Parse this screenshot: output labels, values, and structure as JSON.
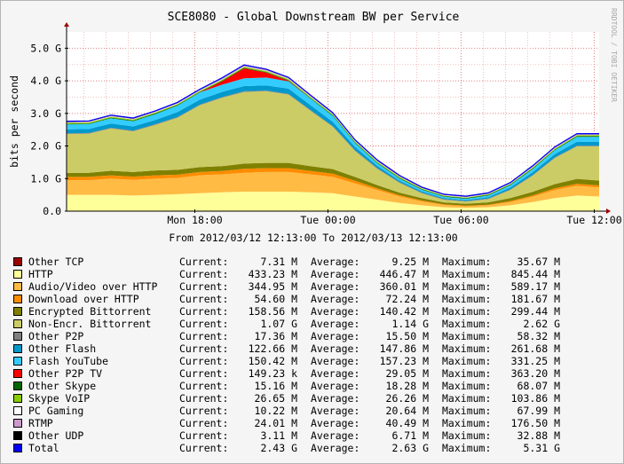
{
  "chart_data": {
    "type": "area",
    "title": "SCE8080 - Global Downstream BW per Service",
    "ylabel": "bits per second",
    "xlabel": "From 2012/03/12 12:13:00 To 2012/03/13 12:13:00",
    "watermark": "RRDTOOL / TOBI OETIKER",
    "ylim": [
      0,
      5.5
    ],
    "y_ticks": [
      {
        "v": 0,
        "label": "0.0"
      },
      {
        "v": 1,
        "label": "1.0 G"
      },
      {
        "v": 2,
        "label": "2.0 G"
      },
      {
        "v": 3,
        "label": "3.0 G"
      },
      {
        "v": 4,
        "label": "4.0 G"
      },
      {
        "v": 5,
        "label": "5.0 G"
      }
    ],
    "xlim_hours": [
      0,
      24
    ],
    "x_ticks": [
      {
        "h": 5.78,
        "label": "Mon 18:00"
      },
      {
        "h": 11.78,
        "label": "Tue 00:00"
      },
      {
        "h": 17.78,
        "label": "Tue 06:00"
      },
      {
        "h": 23.78,
        "label": "Tue 12:00"
      }
    ],
    "x": [
      0,
      1,
      2,
      3,
      4,
      5,
      6,
      7,
      8,
      9,
      10,
      11,
      12,
      13,
      14,
      15,
      16,
      17,
      18,
      19,
      20,
      21,
      22,
      23,
      24
    ],
    "series": [
      {
        "name": "HTTP",
        "color": "#ffff99",
        "values": [
          0.5,
          0.5,
          0.5,
          0.48,
          0.5,
          0.52,
          0.55,
          0.58,
          0.6,
          0.6,
          0.6,
          0.58,
          0.55,
          0.45,
          0.35,
          0.25,
          0.18,
          0.12,
          0.1,
          0.12,
          0.18,
          0.28,
          0.4,
          0.48,
          0.45
        ]
      },
      {
        "name": "Audio/Video over HTTP",
        "color": "#ffbb44",
        "values": [
          0.45,
          0.45,
          0.5,
          0.48,
          0.5,
          0.5,
          0.55,
          0.55,
          0.58,
          0.6,
          0.6,
          0.55,
          0.5,
          0.4,
          0.3,
          0.2,
          0.12,
          0.07,
          0.05,
          0.06,
          0.1,
          0.16,
          0.25,
          0.3,
          0.28
        ]
      },
      {
        "name": "Download over HTTP",
        "color": "#ff8c00",
        "values": [
          0.1,
          0.1,
          0.1,
          0.1,
          0.1,
          0.1,
          0.1,
          0.1,
          0.12,
          0.12,
          0.12,
          0.1,
          0.1,
          0.08,
          0.05,
          0.04,
          0.03,
          0.02,
          0.02,
          0.02,
          0.03,
          0.04,
          0.05,
          0.06,
          0.06
        ]
      },
      {
        "name": "Encrypted Bittorrent",
        "color": "#808000",
        "values": [
          0.12,
          0.13,
          0.14,
          0.14,
          0.15,
          0.15,
          0.15,
          0.15,
          0.16,
          0.16,
          0.16,
          0.15,
          0.14,
          0.12,
          0.1,
          0.08,
          0.07,
          0.06,
          0.06,
          0.07,
          0.09,
          0.11,
          0.13,
          0.15,
          0.15
        ]
      },
      {
        "name": "Non-Encr. Bittorrent",
        "color": "#cccc66",
        "values": [
          1.2,
          1.2,
          1.3,
          1.25,
          1.4,
          1.6,
          1.9,
          2.1,
          2.2,
          2.2,
          2.1,
          1.7,
          1.3,
          0.8,
          0.5,
          0.3,
          0.15,
          0.08,
          0.06,
          0.1,
          0.25,
          0.5,
          0.8,
          1.0,
          1.05
        ]
      },
      {
        "name": "Other P2P",
        "color": "#808080",
        "values": [
          0.02,
          0.02,
          0.02,
          0.02,
          0.02,
          0.02,
          0.02,
          0.02,
          0.02,
          0.02,
          0.02,
          0.02,
          0.02,
          0.02,
          0.02,
          0.02,
          0.02,
          0.02,
          0.02,
          0.02,
          0.02,
          0.02,
          0.02,
          0.02,
          0.02
        ]
      },
      {
        "name": "Other Flash",
        "color": "#0099cc",
        "values": [
          0.12,
          0.12,
          0.13,
          0.13,
          0.13,
          0.15,
          0.15,
          0.16,
          0.16,
          0.16,
          0.16,
          0.15,
          0.13,
          0.1,
          0.07,
          0.05,
          0.04,
          0.03,
          0.03,
          0.04,
          0.06,
          0.08,
          0.1,
          0.12,
          0.12
        ]
      },
      {
        "name": "Flash YouTube",
        "color": "#33ccff",
        "values": [
          0.15,
          0.15,
          0.16,
          0.16,
          0.18,
          0.2,
          0.22,
          0.22,
          0.24,
          0.24,
          0.22,
          0.2,
          0.18,
          0.12,
          0.08,
          0.06,
          0.05,
          0.04,
          0.04,
          0.05,
          0.07,
          0.1,
          0.12,
          0.15,
          0.15
        ]
      },
      {
        "name": "Other P2P TV",
        "color": "#ff0000",
        "values": [
          0,
          0,
          0,
          0,
          0,
          0,
          0,
          0.1,
          0.3,
          0.15,
          0.02,
          0,
          0,
          0,
          0,
          0,
          0,
          0,
          0,
          0,
          0,
          0,
          0,
          0,
          0
        ]
      },
      {
        "name": "Other Skype",
        "color": "#006600",
        "values": [
          0.02,
          0.02,
          0.02,
          0.02,
          0.02,
          0.02,
          0.02,
          0.02,
          0.02,
          0.02,
          0.02,
          0.02,
          0.02,
          0.02,
          0.02,
          0.02,
          0.02,
          0.02,
          0.02,
          0.02,
          0.02,
          0.02,
          0.02,
          0.02,
          0.02
        ]
      },
      {
        "name": "Skype VoIP",
        "color": "#88cc00",
        "values": [
          0.03,
          0.03,
          0.03,
          0.03,
          0.03,
          0.03,
          0.03,
          0.03,
          0.03,
          0.03,
          0.03,
          0.03,
          0.03,
          0.03,
          0.03,
          0.03,
          0.02,
          0.02,
          0.02,
          0.02,
          0.02,
          0.03,
          0.03,
          0.03,
          0.03
        ]
      },
      {
        "name": "PC Gaming",
        "color": "#ffffff",
        "values": [
          0.01,
          0.01,
          0.01,
          0.01,
          0.01,
          0.01,
          0.01,
          0.01,
          0.01,
          0.01,
          0.01,
          0.01,
          0.01,
          0.01,
          0.01,
          0.01,
          0.01,
          0.01,
          0.01,
          0.01,
          0.01,
          0.01,
          0.01,
          0.01,
          0.01
        ]
      },
      {
        "name": "RTMP",
        "color": "#cc99cc",
        "values": [
          0.02,
          0.02,
          0.02,
          0.02,
          0.02,
          0.02,
          0.02,
          0.03,
          0.03,
          0.03,
          0.03,
          0.03,
          0.02,
          0.02,
          0.02,
          0.02,
          0.01,
          0.01,
          0.01,
          0.01,
          0.01,
          0.02,
          0.02,
          0.02,
          0.02
        ]
      },
      {
        "name": "Other UDP",
        "color": "#000000",
        "values": [
          0.01,
          0.01,
          0.01,
          0.01,
          0.01,
          0.01,
          0.01,
          0.01,
          0.01,
          0.01,
          0.01,
          0.01,
          0.01,
          0.01,
          0.01,
          0.01,
          0.01,
          0.01,
          0.01,
          0.01,
          0.01,
          0.01,
          0.01,
          0.01,
          0.01
        ]
      },
      {
        "name": "Other TCP",
        "color": "#990000",
        "values": [
          0.01,
          0.01,
          0.01,
          0.01,
          0.01,
          0.01,
          0.01,
          0.01,
          0.01,
          0.01,
          0.01,
          0.01,
          0.01,
          0.01,
          0.01,
          0.01,
          0.01,
          0.01,
          0.01,
          0.01,
          0.01,
          0.01,
          0.01,
          0.01,
          0.01
        ]
      }
    ],
    "total": {
      "name": "Total",
      "color": "#0000ff"
    }
  },
  "legend": [
    {
      "color": "#990000",
      "name": "Other TCP",
      "current": "7.31 M",
      "average": "9.25 M",
      "maximum": "35.67 M"
    },
    {
      "color": "#ffff99",
      "name": "HTTP",
      "current": "433.23 M",
      "average": "446.47 M",
      "maximum": "845.44 M"
    },
    {
      "color": "#ffbb44",
      "name": "Audio/Video over HTTP",
      "current": "344.95 M",
      "average": "360.01 M",
      "maximum": "589.17 M"
    },
    {
      "color": "#ff8c00",
      "name": "Download over HTTP",
      "current": "54.60 M",
      "average": "72.24 M",
      "maximum": "181.67 M"
    },
    {
      "color": "#808000",
      "name": "Encrypted Bittorrent",
      "current": "158.56 M",
      "average": "140.42 M",
      "maximum": "299.44 M"
    },
    {
      "color": "#cccc66",
      "name": "Non-Encr. Bittorrent",
      "current": "1.07 G",
      "average": "1.14 G",
      "maximum": "2.62 G"
    },
    {
      "color": "#808080",
      "name": "Other P2P",
      "current": "17.36 M",
      "average": "15.50 M",
      "maximum": "58.32 M"
    },
    {
      "color": "#0099cc",
      "name": "Other Flash",
      "current": "122.66 M",
      "average": "147.86 M",
      "maximum": "261.68 M"
    },
    {
      "color": "#33ccff",
      "name": "Flash YouTube",
      "current": "150.42 M",
      "average": "157.23 M",
      "maximum": "331.25 M"
    },
    {
      "color": "#ff0000",
      "name": "Other P2P TV",
      "current": "149.23 k",
      "average": "29.05 M",
      "maximum": "363.20 M"
    },
    {
      "color": "#006600",
      "name": "Other Skype",
      "current": "15.16 M",
      "average": "18.28 M",
      "maximum": "68.07 M"
    },
    {
      "color": "#88cc00",
      "name": "Skype VoIP",
      "current": "26.65 M",
      "average": "26.26 M",
      "maximum": "103.86 M"
    },
    {
      "color": "#ffffff",
      "name": "PC Gaming",
      "current": "10.22 M",
      "average": "20.64 M",
      "maximum": "67.99 M"
    },
    {
      "color": "#cc99cc",
      "name": "RTMP",
      "current": "24.01 M",
      "average": "40.49 M",
      "maximum": "176.50 M"
    },
    {
      "color": "#000000",
      "name": "Other UDP",
      "current": "3.11 M",
      "average": "6.71 M",
      "maximum": "32.88 M"
    },
    {
      "color": "#0000ff",
      "name": "Total",
      "current": "2.43 G",
      "average": "2.63 G",
      "maximum": "5.31 G"
    }
  ],
  "labels": {
    "current": "Current:",
    "average": "Average:",
    "maximum": "Maximum:"
  }
}
